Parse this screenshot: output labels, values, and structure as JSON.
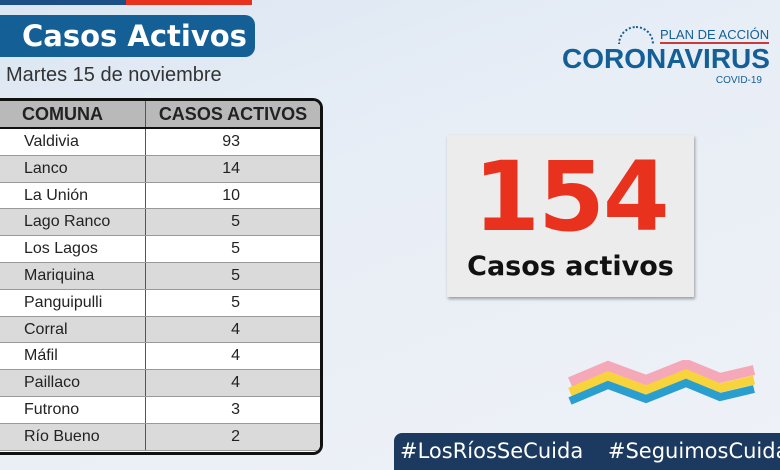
{
  "header": {
    "title": "Casos Activos",
    "date": "Martes 15 de noviembre"
  },
  "table": {
    "columns": [
      "COMUNA",
      "CASOS ACTIVOS"
    ],
    "rows": [
      [
        "Valdivia",
        "93"
      ],
      [
        "Lanco",
        "14"
      ],
      [
        "La Unión",
        "10"
      ],
      [
        "Lago Ranco",
        "5"
      ],
      [
        "Los Lagos",
        "5"
      ],
      [
        "Mariquina",
        "5"
      ],
      [
        "Panguipulli",
        "5"
      ],
      [
        "Corral",
        "4"
      ],
      [
        "Máfil",
        "4"
      ],
      [
        "Paillaco",
        "4"
      ],
      [
        "Futrono",
        "3"
      ],
      [
        "Río Bueno",
        "2"
      ]
    ]
  },
  "logo": {
    "plan": "PLAN DE ACCIÓN",
    "name": "CORONAVIRUS",
    "sub": "COVID-19"
  },
  "total": {
    "value": "154",
    "label": "Casos activos"
  },
  "footer": {
    "tag1": "#LosRíosSeCuida",
    "tag2": "#SeguimosCuidándonos"
  },
  "colors": {
    "blue": "#135f96",
    "red": "#e8321e",
    "navy": "#1c3a5f"
  }
}
